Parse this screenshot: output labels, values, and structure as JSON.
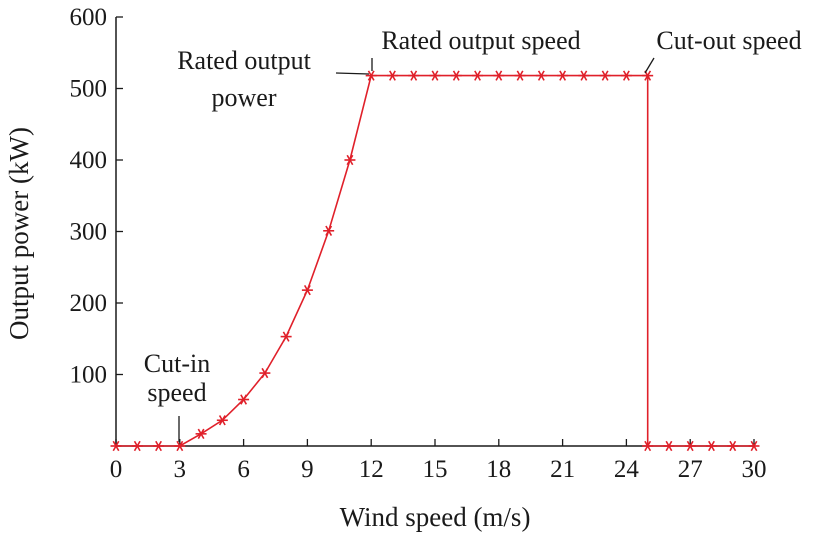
{
  "chart_data": {
    "type": "line",
    "xlabel": "Wind speed (m/s)",
    "ylabel": "Output power (kW)",
    "xlim": [
      0,
      30
    ],
    "ylim": [
      0,
      600
    ],
    "xticks": [
      0,
      3,
      6,
      9,
      12,
      15,
      18,
      21,
      24,
      27,
      30
    ],
    "xtick_labels": [
      "0",
      "3",
      "6",
      "9",
      "12",
      "15",
      "18",
      "21",
      "24",
      "27",
      "30"
    ],
    "yticks": [
      100,
      200,
      300,
      400,
      500,
      600
    ],
    "ytick_labels": [
      "100",
      "200",
      "300",
      "400",
      "500",
      "600"
    ],
    "grid": false,
    "series": [
      {
        "color": "#e0202a",
        "marker": "asterisk",
        "x": [
          0,
          1,
          2,
          3,
          4,
          5,
          6,
          7,
          8,
          9,
          10,
          11,
          12,
          13,
          14,
          15,
          16,
          17,
          18,
          19,
          20,
          21,
          22,
          23,
          24,
          25,
          25,
          26,
          27,
          28,
          29,
          30
        ],
        "y": [
          0,
          0,
          0,
          0,
          17,
          36,
          65,
          102,
          153,
          218,
          301,
          400,
          518,
          518,
          518,
          518,
          518,
          518,
          518,
          518,
          518,
          518,
          518,
          518,
          518,
          518,
          0,
          0,
          0,
          0,
          0,
          0
        ]
      }
    ],
    "annotations": [
      {
        "text_lines": [
          "Cut-in",
          "speed"
        ],
        "x": 3,
        "y": 0
      },
      {
        "text_lines": [
          "Rated output",
          "power"
        ],
        "x": 12,
        "y": 518
      },
      {
        "text_lines": [
          "Rated output speed"
        ],
        "x": 12,
        "y": 518
      },
      {
        "text_lines": [
          "Cut-out speed"
        ],
        "x": 25,
        "y": 518
      }
    ]
  }
}
